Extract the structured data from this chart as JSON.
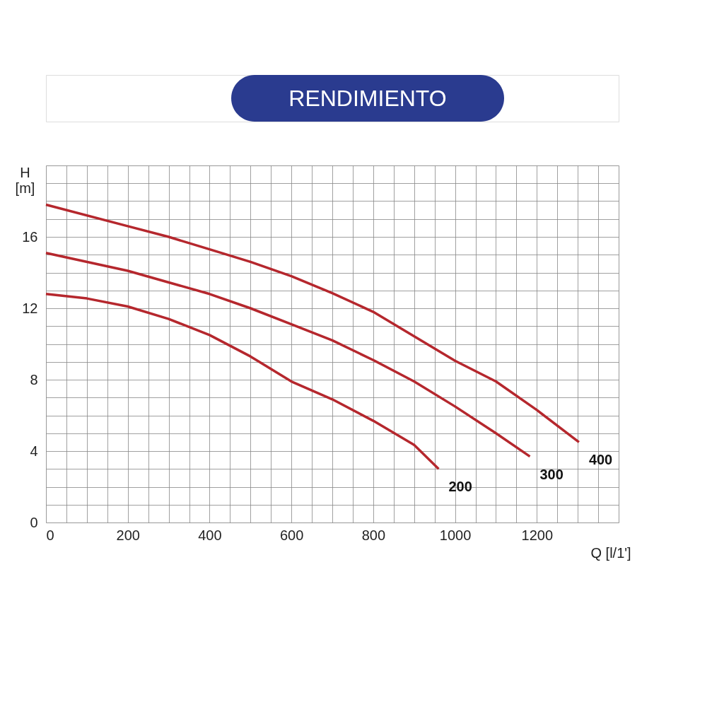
{
  "chart_data": {
    "type": "line",
    "title": "RENDIMIENTO",
    "xlabel": "Q [l/1']",
    "ylabel": "H [m]",
    "xlim": [
      0,
      1400
    ],
    "ylim": [
      0,
      20
    ],
    "xticks": [
      0,
      {
        "value": 50,
        "label": null
      },
      200,
      {
        "value": 100,
        "label": null
      },
      {
        "value": 150,
        "label": null
      },
      {
        "value": 250,
        "label": null
      },
      {
        "value": 300,
        "label": null
      },
      {
        "value": 350,
        "label": null
      },
      400,
      {
        "value": 450,
        "label": null
      },
      {
        "value": 500,
        "label": null
      },
      {
        "value": 550,
        "label": null
      },
      600,
      {
        "value": 650,
        "label": null
      },
      {
        "value": 700,
        "label": null
      },
      {
        "value": 750,
        "label": null
      },
      800,
      {
        "value": 850,
        "label": null
      },
      {
        "value": 900,
        "label": null
      },
      {
        "value": 950,
        "label": null
      },
      1000,
      {
        "value": 1050,
        "label": null
      },
      {
        "value": 1100,
        "label": null
      },
      {
        "value": 1150,
        "label": null
      },
      1200,
      {
        "value": 1250,
        "label": null
      },
      {
        "value": 1300,
        "label": null
      },
      {
        "value": 1350,
        "label": null
      },
      {
        "value": 1400,
        "label": null
      }
    ],
    "yticks": [
      0,
      {
        "value": 1,
        "label": null
      },
      {
        "value": 2,
        "label": null
      },
      {
        "value": 3,
        "label": null
      },
      4,
      {
        "value": 5,
        "label": null
      },
      {
        "value": 6,
        "label": null
      },
      {
        "value": 7,
        "label": null
      },
      8,
      {
        "value": 9,
        "label": null
      },
      {
        "value": 10,
        "label": null
      },
      {
        "value": 11,
        "label": null
      },
      12,
      {
        "value": 13,
        "label": null
      },
      {
        "value": 14,
        "label": null
      },
      {
        "value": 15,
        "label": null
      },
      16,
      {
        "value": 17,
        "label": null
      },
      {
        "value": 18,
        "label": null
      },
      {
        "value": 19,
        "label": null
      },
      {
        "value": 20,
        "label": null
      }
    ],
    "grid": true,
    "marker": "none",
    "line_style": "solid",
    "series": [
      {
        "name": "200",
        "color": "#b5272d",
        "x": [
          0,
          100,
          200,
          300,
          400,
          500,
          600,
          700,
          800,
          900,
          960
        ],
        "values": [
          12.8,
          12.55,
          12.1,
          11.4,
          10.5,
          9.3,
          7.9,
          6.9,
          5.7,
          4.35,
          3.0
        ]
      },
      {
        "name": "300",
        "color": "#b5272d",
        "x": [
          0,
          200,
          400,
          500,
          600,
          700,
          800,
          900,
          1000,
          1100,
          1183
        ],
        "values": [
          15.1,
          14.1,
          12.8,
          12.0,
          11.1,
          10.2,
          9.1,
          7.9,
          6.5,
          5.0,
          3.7
        ]
      },
      {
        "name": "400",
        "color": "#b5272d",
        "x": [
          0,
          200,
          300,
          400,
          500,
          600,
          700,
          800,
          1000,
          1100,
          1200,
          1303
        ],
        "values": [
          17.8,
          16.6,
          16.0,
          15.3,
          14.6,
          13.8,
          12.85,
          11.8,
          9.06,
          7.9,
          6.3,
          4.5
        ]
      }
    ]
  }
}
